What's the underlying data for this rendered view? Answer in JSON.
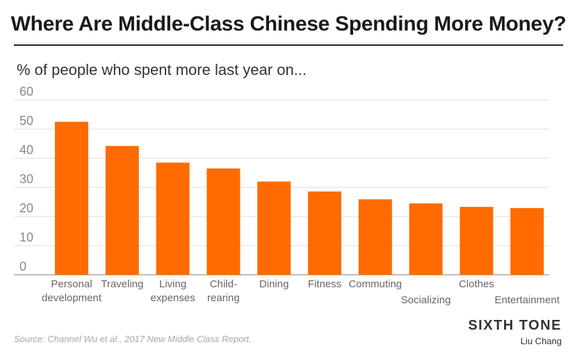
{
  "header": {
    "title": "Where Are Middle-Class Chinese Spending More Money?",
    "subtitle": "% of people who spent more last year on..."
  },
  "footer": {
    "source": "Source: Channel Wu et al., 2017 New Middle Class Report.",
    "brand": "SIXTH TONE",
    "author": "Liu Chang"
  },
  "chart_data": {
    "type": "bar",
    "title": "Where Are Middle-Class Chinese Spending More Money?",
    "subtitle": "% of people who spent more last year on...",
    "categories": [
      [
        "Personal",
        "development"
      ],
      [
        "Traveling"
      ],
      [
        "Living",
        "expenses"
      ],
      [
        "Child-",
        "rearing"
      ],
      [
        "Dining"
      ],
      [
        "Fitness"
      ],
      [
        "Commuting"
      ],
      [
        "Socializing"
      ],
      [
        "Clothes"
      ],
      [
        "Entertainment"
      ]
    ],
    "values": [
      52.5,
      44.2,
      38.5,
      36.5,
      32,
      28.6,
      25.9,
      24.5,
      23.3,
      22.9
    ],
    "yticks": [
      0,
      10,
      20,
      30,
      40,
      50,
      60
    ],
    "ylim": [
      0,
      60
    ],
    "grid": true,
    "bar_color": "#ff6b00",
    "grid_color": "#dcdcdc",
    "axis_color": "#999999"
  }
}
